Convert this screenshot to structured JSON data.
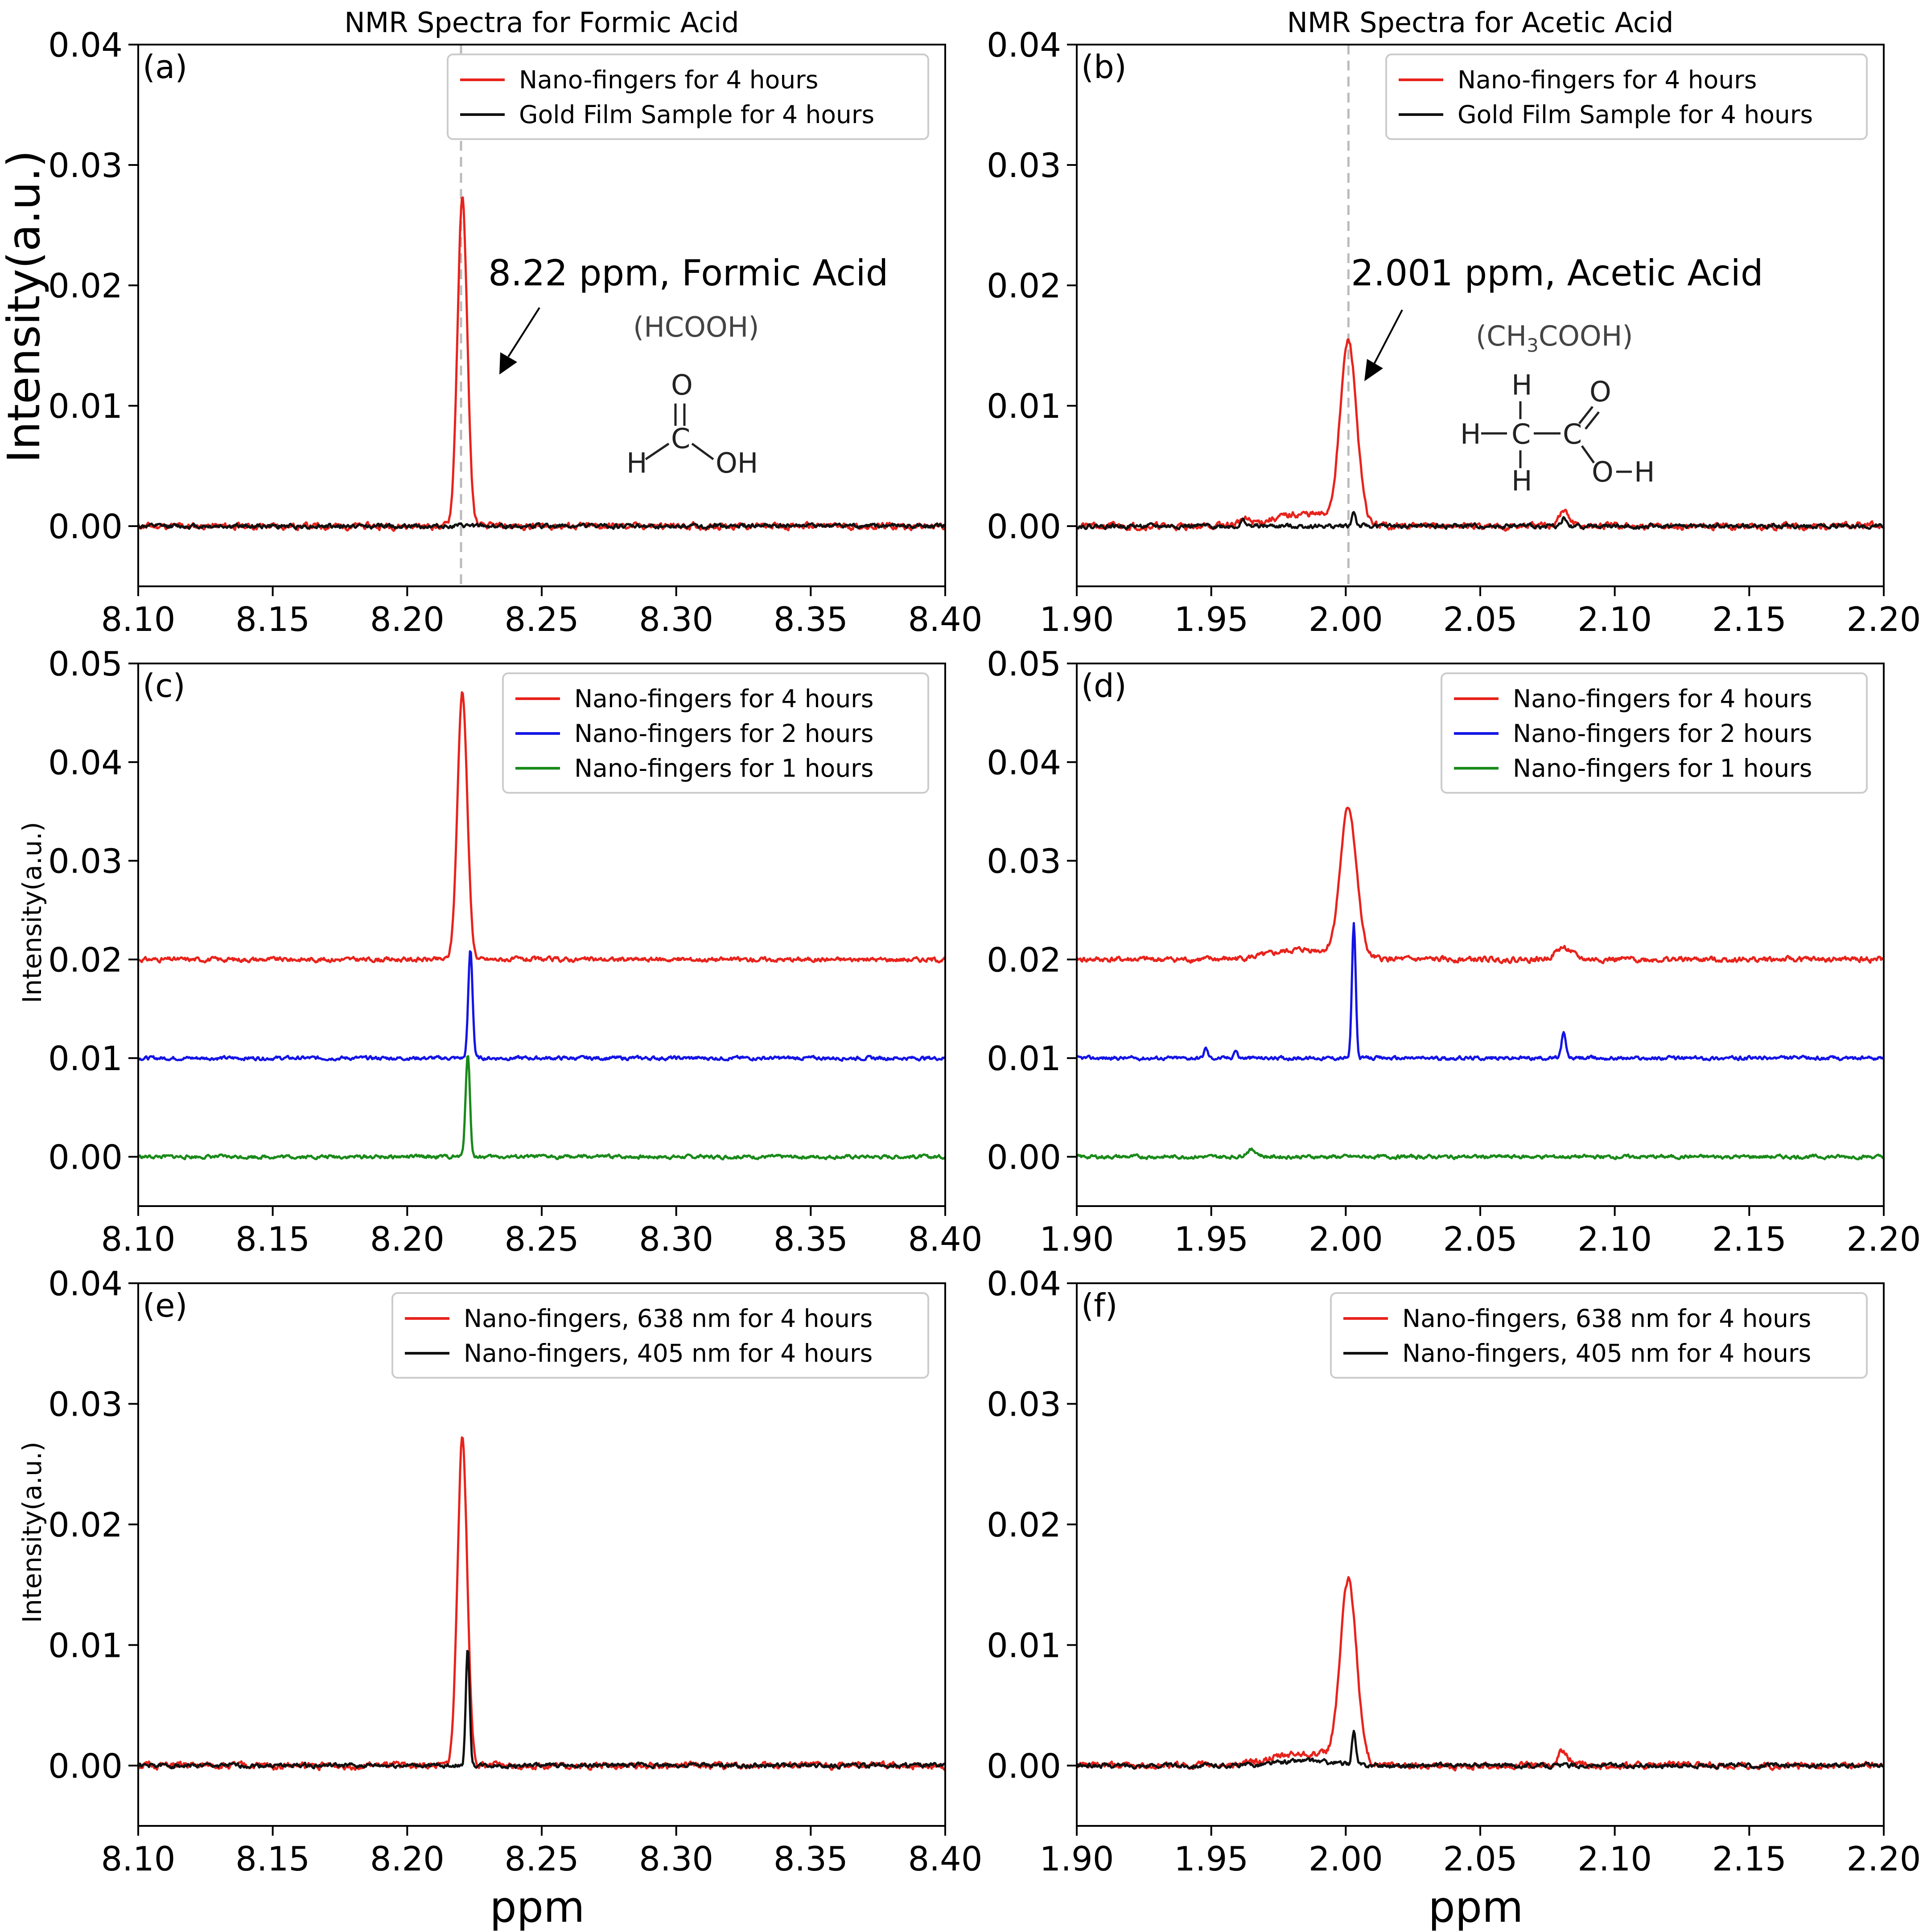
{
  "figure": {
    "panels": [
      {
        "id": "a",
        "panel_label": "(a)",
        "title": "NMR Spectra for Formic Acid",
        "ylabel": "Intensity(a.u.)",
        "ylabel_style": "big",
        "xlabel": "",
        "xlim": [
          8.1,
          8.4
        ],
        "ylim": [
          -0.005,
          0.04
        ],
        "xticks": [
          "8.10",
          "8.15",
          "8.20",
          "8.25",
          "8.30",
          "8.35",
          "8.40"
        ],
        "yticks": [
          "0.00",
          "0.01",
          "0.02",
          "0.03",
          "0.04"
        ],
        "vline": 8.22,
        "annotation": {
          "text": "8.22 ppm, Formic Acid",
          "formula": "(HCOOH)",
          "molecule": "formic"
        },
        "legend": [
          {
            "name": "Nano-fingers for 4 hours",
            "color": "#e8231c"
          },
          {
            "name": "Gold Film Sample for 4 hours",
            "color": "#111111"
          }
        ]
      },
      {
        "id": "b",
        "panel_label": "(b)",
        "title": "NMR Spectra for Acetic Acid",
        "ylabel": "",
        "ylabel_style": "none",
        "xlabel": "",
        "xlim": [
          1.9,
          2.2
        ],
        "ylim": [
          -0.005,
          0.04
        ],
        "xticks": [
          "1.90",
          "1.95",
          "2.00",
          "2.05",
          "2.10",
          "2.15",
          "2.20"
        ],
        "yticks": [
          "0.00",
          "0.01",
          "0.02",
          "0.03",
          "0.04"
        ],
        "vline": 2.001,
        "annotation": {
          "text": "2.001 ppm, Acetic Acid",
          "formula_parts": [
            "(CH",
            "3",
            "COOH)"
          ],
          "molecule": "acetic"
        },
        "legend": [
          {
            "name": "Nano-fingers for 4 hours",
            "color": "#e8231c"
          },
          {
            "name": "Gold Film Sample for 4 hours",
            "color": "#111111"
          }
        ]
      },
      {
        "id": "c",
        "panel_label": "(c)",
        "title": "",
        "ylabel": "Intensity(a.u.)",
        "ylabel_style": "small",
        "xlabel": "",
        "xlim": [
          8.1,
          8.4
        ],
        "ylim": [
          -0.005,
          0.05
        ],
        "xticks": [
          "8.10",
          "8.15",
          "8.20",
          "8.25",
          "8.30",
          "8.35",
          "8.40"
        ],
        "yticks": [
          "0.00",
          "0.01",
          "0.02",
          "0.03",
          "0.04",
          "0.05"
        ],
        "legend": [
          {
            "name": "Nano-fingers for 4 hours",
            "color": "#e8231c"
          },
          {
            "name": "Nano-fingers for 2 hours",
            "color": "#1414e6"
          },
          {
            "name": "Nano-fingers for 1 hours",
            "color": "#1a8a1a"
          }
        ]
      },
      {
        "id": "d",
        "panel_label": "(d)",
        "title": "",
        "ylabel": "",
        "ylabel_style": "none",
        "xlabel": "",
        "xlim": [
          1.9,
          2.2
        ],
        "ylim": [
          -0.005,
          0.05
        ],
        "xticks": [
          "1.90",
          "1.95",
          "2.00",
          "2.05",
          "2.10",
          "2.15",
          "2.20"
        ],
        "yticks": [
          "0.00",
          "0.01",
          "0.02",
          "0.03",
          "0.04",
          "0.05"
        ],
        "legend": [
          {
            "name": "Nano-fingers for 4 hours",
            "color": "#e8231c"
          },
          {
            "name": "Nano-fingers for 2 hours",
            "color": "#1414e6"
          },
          {
            "name": "Nano-fingers for 1 hours",
            "color": "#1a8a1a"
          }
        ]
      },
      {
        "id": "e",
        "panel_label": "(e)",
        "title": "",
        "ylabel": "Intensity(a.u.)",
        "ylabel_style": "small",
        "xlabel": "ppm",
        "xlim": [
          8.1,
          8.4
        ],
        "ylim": [
          -0.005,
          0.04
        ],
        "xticks": [
          "8.10",
          "8.15",
          "8.20",
          "8.25",
          "8.30",
          "8.35",
          "8.40"
        ],
        "yticks": [
          "0.00",
          "0.01",
          "0.02",
          "0.03",
          "0.04"
        ],
        "legend": [
          {
            "name": "Nano-fingers, 638 nm for 4 hours",
            "color": "#e8231c"
          },
          {
            "name": "Nano-fingers, 405 nm for 4 hours",
            "color": "#111111"
          }
        ]
      },
      {
        "id": "f",
        "panel_label": "(f)",
        "title": "",
        "ylabel": "",
        "ylabel_style": "none",
        "xlabel": "ppm",
        "xlim": [
          1.9,
          2.2
        ],
        "ylim": [
          -0.005,
          0.04
        ],
        "xticks": [
          "1.90",
          "1.95",
          "2.00",
          "2.05",
          "2.10",
          "2.15",
          "2.20"
        ],
        "yticks": [
          "0.00",
          "0.01",
          "0.02",
          "0.03",
          "0.04"
        ],
        "legend": [
          {
            "name": "Nano-fingers, 638 nm for 4 hours",
            "color": "#e8231c"
          },
          {
            "name": "Nano-fingers, 405 nm for 4 hours",
            "color": "#111111"
          }
        ]
      }
    ]
  },
  "chart_data": [
    {
      "type": "line",
      "panel": "a",
      "title": "NMR Spectra for Formic Acid",
      "xlabel": "",
      "ylabel": "Intensity(a.u.)",
      "xlim": [
        8.1,
        8.4
      ],
      "ylim": [
        -0.005,
        0.04
      ],
      "series": [
        {
          "name": "Nano-fingers for 4 hours",
          "color": "#e8231c",
          "baseline": 0.0,
          "noise": 0.0003,
          "seed": 11,
          "peaks": [
            {
              "center": 8.2205,
              "height": 0.0272,
              "width": 0.0018
            }
          ]
        },
        {
          "name": "Gold Film Sample for 4 hours",
          "color": "#111111",
          "baseline": 0.0,
          "noise": 0.0002,
          "seed": 12,
          "peaks": []
        }
      ]
    },
    {
      "type": "line",
      "panel": "b",
      "title": "NMR Spectra for Acetic Acid",
      "xlabel": "",
      "ylabel": "",
      "xlim": [
        1.9,
        2.2
      ],
      "ylim": [
        -0.005,
        0.04
      ],
      "series": [
        {
          "name": "Nano-fingers for 4 hours",
          "color": "#e8231c",
          "baseline": 0.0,
          "noise": 0.0003,
          "seed": 21,
          "peaks": [
            {
              "center": 2.001,
              "height": 0.015,
              "width": 0.003
            },
            {
              "center": 1.985,
              "height": 0.001,
              "width": 0.012
            },
            {
              "center": 2.081,
              "height": 0.0012,
              "width": 0.002
            },
            {
              "center": 1.962,
              "height": 0.0004,
              "width": 0.002
            }
          ]
        },
        {
          "name": "Gold Film Sample for 4 hours",
          "color": "#111111",
          "baseline": 0.0,
          "noise": 0.0002,
          "seed": 22,
          "peaks": [
            {
              "center": 2.003,
              "height": 0.0012,
              "width": 0.0007
            },
            {
              "center": 2.081,
              "height": 0.0007,
              "width": 0.0008
            },
            {
              "center": 1.962,
              "height": 0.0005,
              "width": 0.0008
            }
          ]
        }
      ]
    },
    {
      "type": "line",
      "panel": "c",
      "title": "",
      "xlabel": "",
      "ylabel": "Intensity(a.u.)",
      "xlim": [
        8.1,
        8.4
      ],
      "ylim": [
        -0.005,
        0.05
      ],
      "series": [
        {
          "name": "Nano-fingers for 4 hours",
          "color": "#e8231c",
          "baseline": 0.02,
          "noise": 0.00025,
          "seed": 31,
          "peaks": [
            {
              "center": 8.2205,
              "height": 0.0272,
              "width": 0.0018
            }
          ]
        },
        {
          "name": "Nano-fingers for 2 hours",
          "color": "#1414e6",
          "baseline": 0.01,
          "noise": 0.0002,
          "seed": 32,
          "peaks": [
            {
              "center": 8.2235,
              "height": 0.011,
              "width": 0.0008
            }
          ]
        },
        {
          "name": "Nano-fingers for 1 hours",
          "color": "#1a8a1a",
          "baseline": 0.0,
          "noise": 0.0002,
          "seed": 33,
          "peaks": [
            {
              "center": 8.2225,
              "height": 0.0105,
              "width": 0.0008
            }
          ]
        }
      ]
    },
    {
      "type": "line",
      "panel": "d",
      "title": "",
      "xlabel": "",
      "ylabel": "",
      "xlim": [
        1.9,
        2.2
      ],
      "ylim": [
        -0.005,
        0.05
      ],
      "series": [
        {
          "name": "Nano-fingers for 4 hours",
          "color": "#e8231c",
          "baseline": 0.02,
          "noise": 0.0003,
          "seed": 41,
          "peaks": [
            {
              "center": 2.001,
              "height": 0.015,
              "width": 0.003
            },
            {
              "center": 1.985,
              "height": 0.001,
              "width": 0.012
            },
            {
              "center": 2.081,
              "height": 0.0012,
              "width": 0.003
            }
          ]
        },
        {
          "name": "Nano-fingers for 2 hours",
          "color": "#1414e6",
          "baseline": 0.01,
          "noise": 0.0002,
          "seed": 42,
          "peaks": [
            {
              "center": 2.003,
              "height": 0.0135,
              "width": 0.0007
            },
            {
              "center": 2.081,
              "height": 0.0025,
              "width": 0.0008
            },
            {
              "center": 1.948,
              "height": 0.001,
              "width": 0.0007
            },
            {
              "center": 1.959,
              "height": 0.0008,
              "width": 0.0007
            }
          ]
        },
        {
          "name": "Nano-fingers for 1 hours",
          "color": "#1a8a1a",
          "baseline": 0.0,
          "noise": 0.0002,
          "seed": 43,
          "peaks": [
            {
              "center": 1.965,
              "height": 0.0007,
              "width": 0.002
            }
          ]
        }
      ]
    },
    {
      "type": "line",
      "panel": "e",
      "title": "",
      "xlabel": "ppm",
      "ylabel": "Intensity(a.u.)",
      "xlim": [
        8.1,
        8.4
      ],
      "ylim": [
        -0.005,
        0.04
      ],
      "series": [
        {
          "name": "Nano-fingers, 638 nm for 4 hours",
          "color": "#e8231c",
          "baseline": 0.0,
          "noise": 0.0003,
          "seed": 51,
          "peaks": [
            {
              "center": 8.2205,
              "height": 0.0272,
              "width": 0.0018
            }
          ]
        },
        {
          "name": "Nano-fingers, 405 nm for 4 hours",
          "color": "#111111",
          "baseline": 0.0,
          "noise": 0.0002,
          "seed": 52,
          "peaks": [
            {
              "center": 8.2225,
              "height": 0.0098,
              "width": 0.0007
            }
          ]
        }
      ]
    },
    {
      "type": "line",
      "panel": "f",
      "title": "",
      "xlabel": "ppm",
      "ylabel": "",
      "xlim": [
        1.9,
        2.2
      ],
      "ylim": [
        -0.005,
        0.04
      ],
      "series": [
        {
          "name": "Nano-fingers, 638 nm for 4 hours",
          "color": "#e8231c",
          "baseline": 0.0,
          "noise": 0.0003,
          "seed": 61,
          "peaks": [
            {
              "center": 2.001,
              "height": 0.015,
              "width": 0.003
            },
            {
              "center": 1.985,
              "height": 0.001,
              "width": 0.012
            },
            {
              "center": 2.081,
              "height": 0.0012,
              "width": 0.002
            }
          ]
        },
        {
          "name": "Nano-fingers, 405 nm for 4 hours",
          "color": "#111111",
          "baseline": 0.0,
          "noise": 0.0002,
          "seed": 62,
          "peaks": [
            {
              "center": 2.003,
              "height": 0.0028,
              "width": 0.0007
            },
            {
              "center": 1.985,
              "height": 0.0004,
              "width": 0.01
            }
          ]
        }
      ]
    }
  ]
}
